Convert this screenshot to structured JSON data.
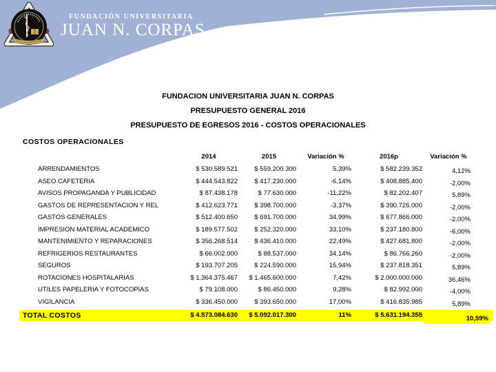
{
  "brand": {
    "line1": "FUNDACIÓN UNIVERSITARIA",
    "line2": "JUAN N. CORPAS"
  },
  "title": {
    "line1": "FUNDACION UNIVERSITARIA JUAN N. CORPAS",
    "line2": "PRESUPUESTO GENERAL 2016",
    "line3": "PRESUPUESTO DE EGRESOS 2016 - COSTOS OPERACIONALES"
  },
  "section_heading": "COSTOS OPERACIONALES",
  "table": {
    "header": {
      "label": "",
      "y2014": "2014",
      "y2015": "2015",
      "var2015": "Variación %",
      "y2016p": "2016p",
      "var2016p": "Variación %"
    },
    "rows": [
      {
        "label": "ARRENDAMIENTOS",
        "y2014": "$ 530.589.521",
        "y2015": "$ 559.200.300",
        "var2015": "5,39%",
        "y2016p": "$ 582.239.352",
        "var2016p": "4,12%"
      },
      {
        "label": "ASEO CAFETERIA",
        "y2014": "$ 444.543.822",
        "y2015": "$ 417.230.000",
        "var2015": "-6,14%",
        "y2016p": "$ 408.885.400",
        "var2016p": "-2,00%"
      },
      {
        "label": "AVISOS PROPAGANDA Y PUBLICIDAD",
        "y2014": "$ 87.438.178",
        "y2015": "$ 77.630.000",
        "var2015": "-11,22%",
        "y2016p": "$ 82.202.407",
        "var2016p": "5,89%"
      },
      {
        "label": "GASTOS DE REPRESENTACION Y REL",
        "y2014": "$ 412.623.771",
        "y2015": "$ 398.700.000",
        "var2015": "-3,37%",
        "y2016p": "$ 390.726.000",
        "var2016p": "-2,00%"
      },
      {
        "label": "GASTOS GENERALES",
        "y2014": "$ 512.400.650",
        "y2015": "$ 691.700.000",
        "var2015": "34,99%",
        "y2016p": "$ 677.866.000",
        "var2016p": "-2,00%"
      },
      {
        "label": "IMPRESION MATERIAL ACADEMICO",
        "y2014": "$ 189.577.502",
        "y2015": "$ 252.320.000",
        "var2015": "33,10%",
        "y2016p": "$ 237.180.800",
        "var2016p": "-6,00%"
      },
      {
        "label": "MANTENIMIENTO Y REPARACIONES",
        "y2014": "$ 356.268.514",
        "y2015": "$ 436.410.000",
        "var2015": "22,49%",
        "y2016p": "$ 427.681.800",
        "var2016p": "-2,00%"
      },
      {
        "label": "REFRIGERIOS RESTAURANTES",
        "y2014": "$ 66.002.000",
        "y2015": "$ 88.537.000",
        "var2015": "34,14%",
        "y2016p": "$ 86.766.260",
        "var2016p": "-2,00%"
      },
      {
        "label": "SEGUROS",
        "y2014": "$ 193.707.205",
        "y2015": "$ 224.590.000",
        "var2015": "15,94%",
        "y2016p": "$ 237.818.351",
        "var2016p": "5,89%"
      },
      {
        "label": "ROTACIONES HOSPITALARIAS",
        "y2014": "$ 1.364.375.467",
        "y2015": "$ 1.465.600.000",
        "var2015": "7,42%",
        "y2016p": "$ 2.000.000.000",
        "var2016p": "36,46%"
      },
      {
        "label": "UTILES PAPELERIA Y FOTOCOPIAS",
        "y2014": "$ 79.108.000",
        "y2015": "$ 86.450.000",
        "var2015": "9,28%",
        "y2016p": "$ 82.992.000",
        "var2016p": "-4,00%"
      },
      {
        "label": "VIGILANCIA",
        "y2014": "$ 336.450.000",
        "y2015": "$ 393.650.000",
        "var2015": "17,00%",
        "y2016p": "$ 416.835.985",
        "var2016p": "5,89%"
      }
    ],
    "total": {
      "label": "TOTAL COSTOS",
      "y2014": "$ 4.573.084.630",
      "y2015": "$ 5.092.017.300",
      "var2015": "11%",
      "y2016p": "$ 5.631.194.355",
      "var2016p": "10,59%"
    }
  },
  "colors": {
    "header_blue": "#a1b1d3",
    "highlight_yellow": "#ffff00",
    "text": "#000000",
    "logo_gold": "#c9a96a",
    "logo_red": "#9b2b2b"
  }
}
